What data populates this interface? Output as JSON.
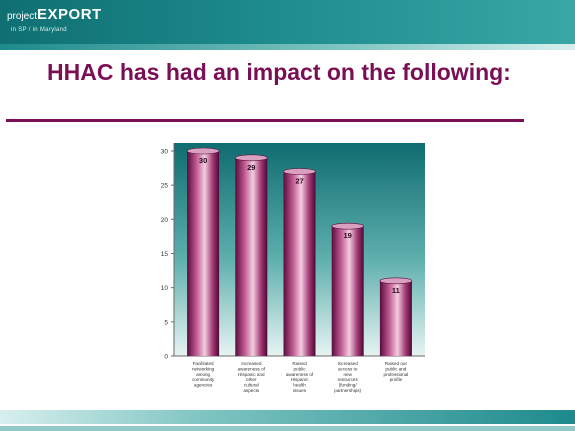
{
  "header": {
    "brand_prefix": "project",
    "brand_main": "EXPORT",
    "brand_sub": "in SP / in Maryland"
  },
  "slide": {
    "title": "HHAC has had an impact on the following:"
  },
  "chart_data": {
    "type": "bar",
    "categories": [
      "Facilitated networking among community agencies",
      "Increased awareness of Hispanic and other cultural aspects",
      "Raised public awareness of Hispanic health issues",
      "Increased access to new resources (funding/ partnerships)",
      "Raised our public and professional profile"
    ],
    "values": [
      30,
      29,
      27,
      19,
      11
    ],
    "value_labels": [
      "30",
      "29",
      "27",
      "19",
      "11"
    ],
    "ylim": [
      0,
      30
    ],
    "yticks": [
      "0",
      "5",
      "10",
      "15",
      "20",
      "25",
      "30"
    ],
    "grid": false,
    "colors": {
      "bar": "#8b1d5f",
      "plot_bg_top": "#0f6c70",
      "plot_bg_bottom": "#e6f4f3"
    }
  }
}
